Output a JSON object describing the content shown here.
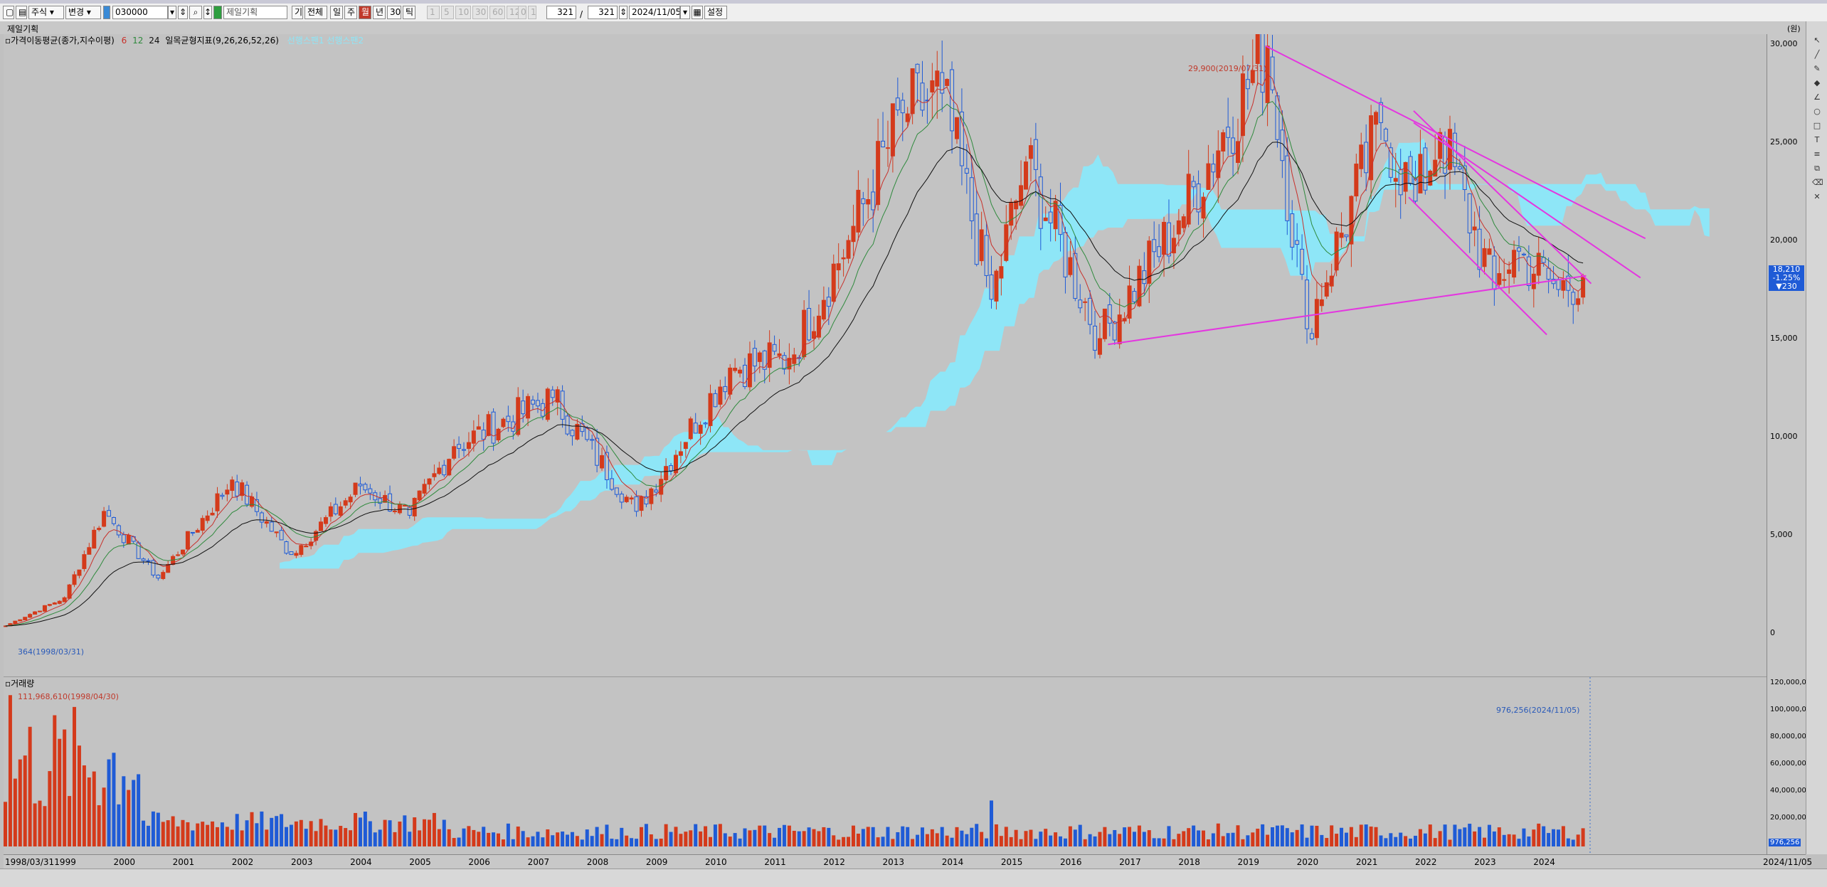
{
  "toolbar": {
    "market": "주식",
    "change": "변경",
    "code": "030000",
    "name": "제일기획",
    "btn_gi": "기",
    "btn_all": "전체",
    "period_day": "일",
    "period_week": "주",
    "period_month": "월",
    "period_year": "년",
    "period_min": "30s",
    "period_tick": "틱",
    "periods_disabled": [
      "1",
      "5",
      "10",
      "30",
      "60",
      "120"
    ],
    "btn_0": "0",
    "btn_1": "1",
    "count_a": "321",
    "slash": "/",
    "count_b": "321",
    "date": "2024/11/05",
    "btn_settings": "설정"
  },
  "stock_title": "제일기획",
  "legend": {
    "ma_title": "가격이동평균(종가,지수이평)",
    "ma_values": [
      "6",
      "12",
      "24"
    ],
    "ichimoku_title": "일목균형지표(9,26,26,52,26)",
    "ichimoku_spans": "선행스팬1 선행스팬2"
  },
  "price_annotations": {
    "high": "29,900(2019/07/31)",
    "low": "364(1998/03/31)"
  },
  "price_axis": {
    "unit": "(원)",
    "ticks": [
      "30,000",
      "25,000",
      "20,000",
      "15,000",
      "10,000",
      "5,000",
      "0"
    ],
    "current_price": "18,210",
    "change_pct": "-1.25%",
    "change_abs": "▼230"
  },
  "volume_panel": {
    "title": "거래량",
    "max_label": "111,968,610(1998/04/30)",
    "current_label": "976,256(2024/11/05)",
    "current_value": "976,256",
    "ticks": [
      "120,000,000",
      "100,000,000",
      "80,000,000",
      "60,000,000",
      "40,000,000",
      "20,000,000"
    ]
  },
  "x_axis": {
    "start": "1998/03/31",
    "years": [
      "1999",
      "2000",
      "2001",
      "2002",
      "2003",
      "2004",
      "2005",
      "2006",
      "2007",
      "2008",
      "2009",
      "2010",
      "2011",
      "2012",
      "2013",
      "2014",
      "2015",
      "2016",
      "2017",
      "2018",
      "2019",
      "2020",
      "2021",
      "2022",
      "2023",
      "2024"
    ],
    "end": "2024/11/05"
  },
  "colors": {
    "up": "#d43a1b",
    "down": "#1f5bd6",
    "cloud": "#8ee6f7",
    "trendline": "#e436e0",
    "ma6": "#c8302a",
    "ma12": "#2f8a3d",
    "ma24": "#101010"
  },
  "chart_data": {
    "type": "candlestick",
    "interval": "monthly",
    "ylim": [
      0,
      32000
    ],
    "keypoints": [
      {
        "date": "1998/03",
        "close": 364
      },
      {
        "date": "1999/03",
        "close": 1800
      },
      {
        "date": "1999/11",
        "close": 6200
      },
      {
        "date": "2000/10",
        "close": 2800
      },
      {
        "date": "2002/01",
        "close": 7800
      },
      {
        "date": "2003/01",
        "close": 4000
      },
      {
        "date": "2004/03",
        "close": 7500
      },
      {
        "date": "2005/01",
        "close": 6000
      },
      {
        "date": "2005/10",
        "close": 9500
      },
      {
        "date": "2007/06",
        "close": 12000
      },
      {
        "date": "2008/11",
        "close": 6200
      },
      {
        "date": "2010/06",
        "close": 13500
      },
      {
        "date": "2011/06",
        "close": 14000
      },
      {
        "date": "2012/06",
        "close": 20000
      },
      {
        "date": "2013/05",
        "close": 26500
      },
      {
        "date": "2014/01",
        "close": 27500
      },
      {
        "date": "2014/11",
        "close": 17000
      },
      {
        "date": "2015/06",
        "close": 24000
      },
      {
        "date": "2016/09",
        "close": 15000
      },
      {
        "date": "2018/01",
        "close": 21000
      },
      {
        "date": "2019/07",
        "close": 29900
      },
      {
        "date": "2020/03",
        "close": 15500
      },
      {
        "date": "2021/06",
        "close": 26000
      },
      {
        "date": "2022/01",
        "close": 22000
      },
      {
        "date": "2022/06",
        "close": 25500
      },
      {
        "date": "2023/05",
        "close": 17500
      },
      {
        "date": "2023/09",
        "close": 19500
      },
      {
        "date": "2024/06",
        "close": 17500
      },
      {
        "date": "2024/11",
        "close": 18210
      }
    ]
  }
}
